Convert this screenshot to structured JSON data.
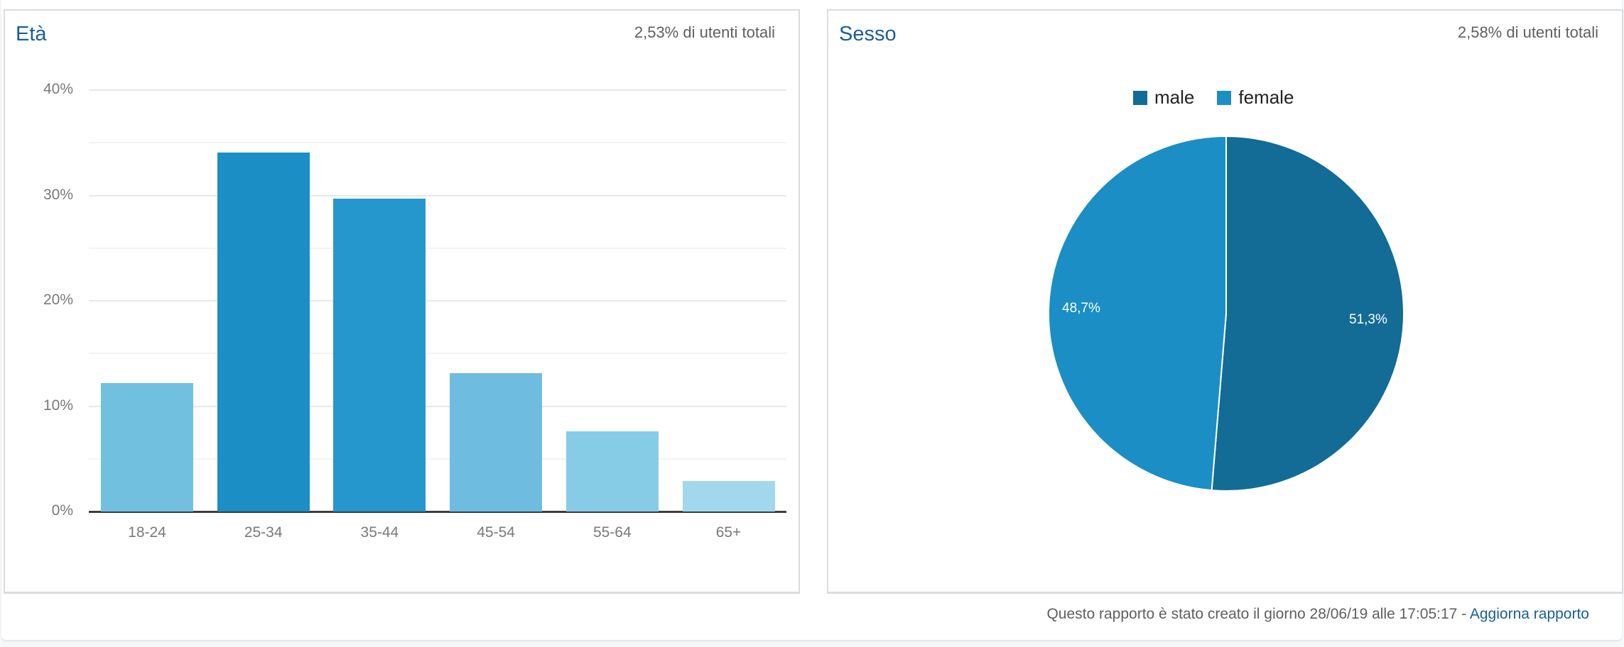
{
  "age_panel": {
    "title": "Età",
    "subtitle": "2,53% di utenti totali",
    "y_ticks": [
      "40%",
      "30%",
      "20%",
      "10%",
      "0%"
    ]
  },
  "gender_panel": {
    "title": "Sesso",
    "subtitle": "2,58% di utenti totali",
    "legend": [
      {
        "label": "male",
        "color": "#126c96"
      },
      {
        "label": "female",
        "color": "#1b8ec6"
      }
    ],
    "slice_labels": {
      "male": "51,3%",
      "female": "48,7%"
    }
  },
  "footer": {
    "text": "Questo rapporto è stato creato il giorno 28/06/19 alle 17:05:17 -",
    "link": "Aggiorna rapporto"
  },
  "chart_data": [
    {
      "type": "bar",
      "title": "Età",
      "subtitle": "2,53% di utenti totali",
      "categories": [
        "18-24",
        "25-34",
        "35-44",
        "45-54",
        "55-64",
        "65+"
      ],
      "values": [
        12.2,
        34.1,
        29.7,
        13.1,
        7.6,
        2.9
      ],
      "colors": [
        "#72c0e0",
        "#1b8ec6",
        "#2697cc",
        "#6ebde0",
        "#87cce7",
        "#a2d8ed"
      ],
      "xlabel": "",
      "ylabel": "",
      "ylim": [
        0,
        40
      ],
      "yticks": [
        "0%",
        "10%",
        "20%",
        "30%",
        "40%"
      ],
      "grid": true,
      "legend": "none"
    },
    {
      "type": "pie",
      "title": "Sesso",
      "subtitle": "2,58% di utenti totali",
      "categories": [
        "male",
        "female"
      ],
      "values": [
        51.3,
        48.7
      ],
      "labels": [
        "51,3%",
        "48,7%"
      ],
      "colors": [
        "#126c96",
        "#1b8ec6"
      ],
      "legend_position": "top"
    }
  ]
}
